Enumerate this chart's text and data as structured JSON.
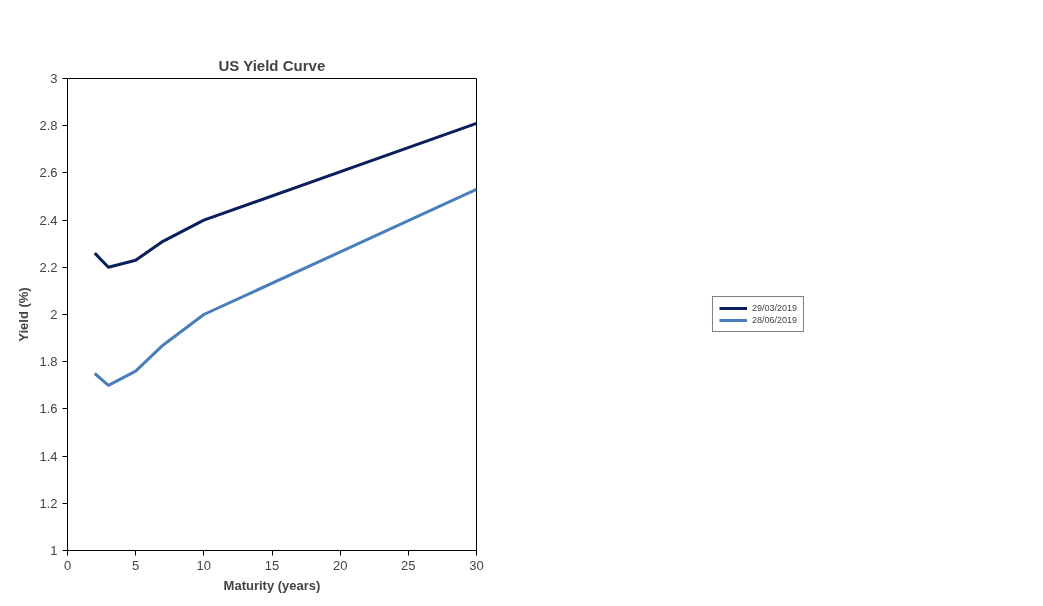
{
  "chart_data": {
    "type": "line",
    "title": "US Yield Curve",
    "xlabel": "Maturity (years)",
    "ylabel": "Yield (%)",
    "x": [
      2,
      3,
      5,
      7,
      10,
      30
    ],
    "series": [
      {
        "name": "29/03/2019",
        "color": "#0b1f5c",
        "values": [
          2.26,
          2.2,
          2.23,
          2.31,
          2.4,
          2.81
        ]
      },
      {
        "name": "28/06/2019",
        "color": "#4a7ebb",
        "values": [
          1.75,
          1.7,
          1.76,
          1.87,
          2.0,
          2.53
        ]
      }
    ],
    "xlim": [
      0,
      30
    ],
    "xticks": [
      0,
      5,
      10,
      15,
      20,
      25,
      30
    ],
    "ylim": [
      1,
      3
    ],
    "yticks": [
      1,
      1.2,
      1.4,
      1.6,
      1.8,
      2,
      2.2,
      2.4,
      2.6,
      2.8,
      3
    ],
    "grid": false,
    "legend": "right",
    "marker": "none",
    "line_style": "solid"
  }
}
